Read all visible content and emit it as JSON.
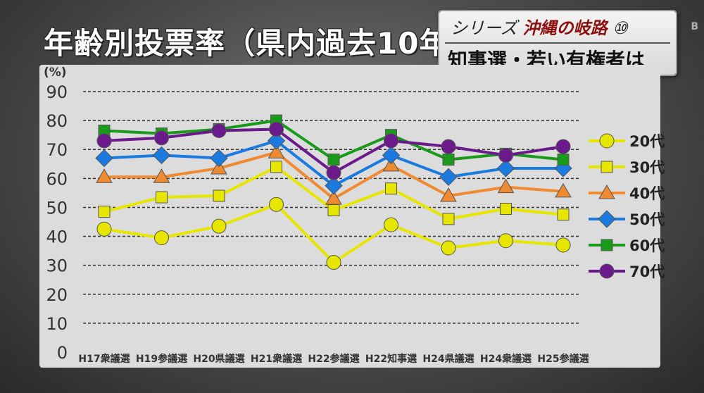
{
  "title": "年齢別投票率（県内過去10年",
  "series_box": {
    "label": "シリーズ",
    "name": "沖縄の岐路",
    "number": "⑩",
    "subtitle": "知事選・若い有権者は"
  },
  "logo": "B",
  "chart_data": {
    "type": "line",
    "ylabel": "(%)",
    "ylim": [
      0,
      90
    ],
    "yticks": [
      0,
      10,
      20,
      30,
      40,
      50,
      60,
      70,
      80,
      90
    ],
    "grid": true,
    "legend_position": "right",
    "categories": [
      "H17衆議選",
      "H19参議選",
      "H20県議選",
      "H21衆議選",
      "H22参議選",
      "H22知事選",
      "H24県議選",
      "H24衆議選",
      "H25参議選"
    ],
    "series": [
      {
        "name": "20代",
        "color": "#e6e600",
        "marker": "circle",
        "values": [
          42.5,
          39.5,
          43.5,
          51,
          31,
          44,
          36,
          38.5,
          37
        ]
      },
      {
        "name": "30代",
        "color": "#e6e600",
        "marker": "square",
        "values": [
          48.5,
          53.5,
          54,
          64,
          49,
          56.5,
          46,
          49.5,
          47.5
        ]
      },
      {
        "name": "40代",
        "color": "#f08a30",
        "marker": "triangle",
        "values": [
          60.5,
          60.5,
          63.5,
          69,
          53,
          64.5,
          54,
          57,
          55.5
        ]
      },
      {
        "name": "50代",
        "color": "#1a7ae0",
        "marker": "diamond",
        "values": [
          67,
          68,
          67,
          73,
          57.5,
          68,
          60.5,
          63.5,
          63.5
        ]
      },
      {
        "name": "60代",
        "color": "#1a9a1a",
        "marker": "square",
        "values": [
          76.5,
          75.5,
          77,
          80,
          66.5,
          75,
          66.5,
          68.5,
          66.5
        ]
      },
      {
        "name": "70代",
        "color": "#6a1a8a",
        "marker": "circle",
        "values": [
          73,
          74,
          76.5,
          77,
          62,
          73,
          71,
          68,
          71
        ]
      }
    ]
  }
}
